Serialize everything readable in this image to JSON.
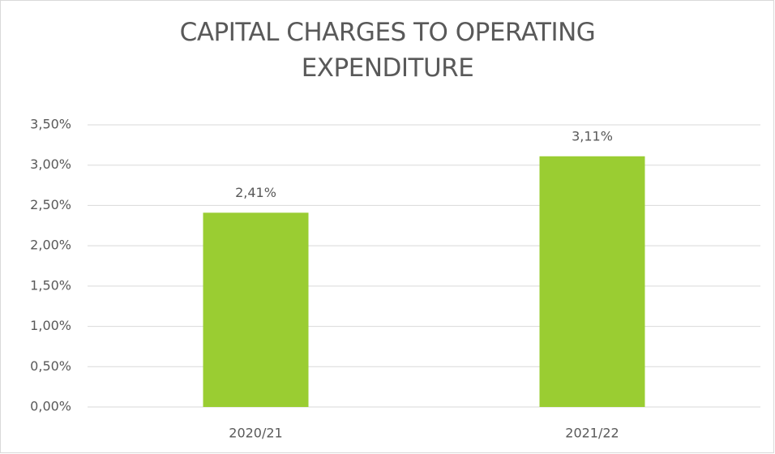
{
  "chart_data": {
    "type": "bar",
    "title": "CAPITAL CHARGES TO OPERATING EXPENDITURE",
    "categories": [
      "2020/21",
      "2021/22"
    ],
    "values": [
      2.41,
      3.11
    ],
    "value_labels": [
      "2,41%",
      "3,11%"
    ],
    "color": "#9acd32",
    "ylim": [
      0,
      3.5
    ],
    "yticks": [
      {
        "value": 0,
        "label": "0,00%"
      },
      {
        "value": 0.5,
        "label": "0,50%"
      },
      {
        "value": 1,
        "label": "1,00%"
      },
      {
        "value": 1.5,
        "label": "1,50%"
      },
      {
        "value": 2,
        "label": "2,00%"
      },
      {
        "value": 2.5,
        "label": "2,50%"
      },
      {
        "value": 3,
        "label": "3,00%"
      },
      {
        "value": 3.5,
        "label": "3,50%"
      }
    ],
    "grid": true
  }
}
